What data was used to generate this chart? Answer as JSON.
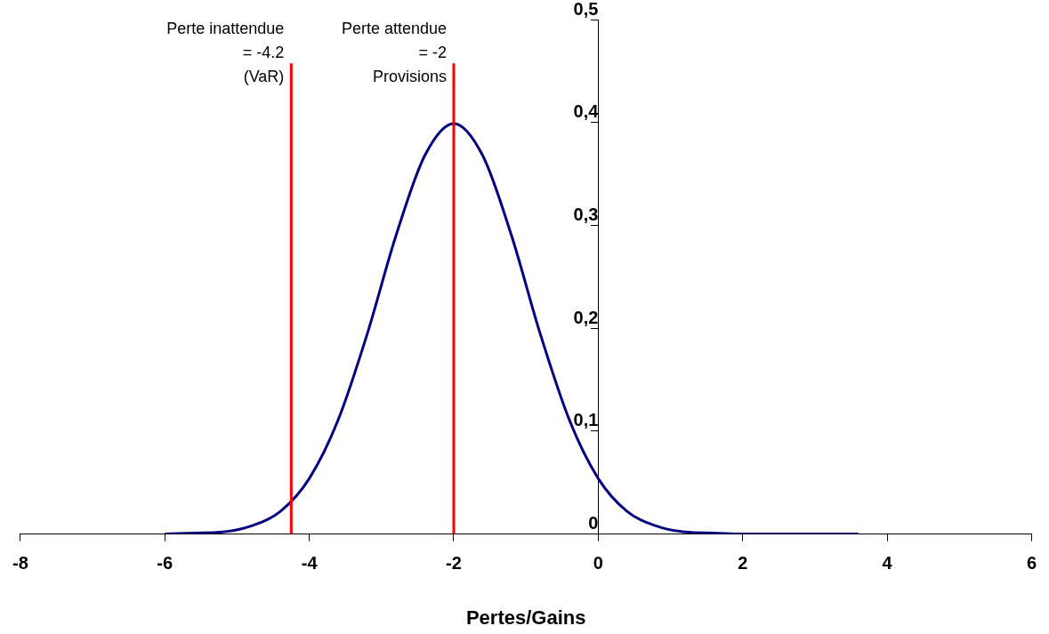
{
  "chart_data": {
    "type": "line",
    "xlabel": "Pertes/Gains",
    "xlim": [
      -8,
      6
    ],
    "xticks": [
      -8,
      -6,
      -4,
      -2,
      0,
      2,
      4,
      6
    ],
    "ylim": [
      0,
      0.5
    ],
    "yticks": [
      {
        "value": 0,
        "label": "0"
      },
      {
        "value": 0.1,
        "label": "0,1"
      },
      {
        "value": 0.2,
        "label": "0,2"
      },
      {
        "value": 0.3,
        "label": "0,3"
      },
      {
        "value": 0.4,
        "label": "0,4"
      },
      {
        "value": 0.5,
        "label": "0,5"
      }
    ],
    "grid": false,
    "legend": false,
    "marker": "none",
    "line_style": "solid",
    "series": [
      {
        "color": "#000080",
        "x": [
          -6,
          -5.6,
          -5.2,
          -4.8,
          -4.4,
          -4.0,
          -3.6,
          -3.2,
          -2.8,
          -2.4,
          -2.0,
          -1.6,
          -1.2,
          -0.8,
          -0.4,
          0,
          0.4,
          0.8,
          1.2,
          1.6,
          2,
          2.4,
          2.8,
          3.2,
          3.6
        ],
        "values": [
          0,
          0.001,
          0.002,
          0.008,
          0.022,
          0.054,
          0.111,
          0.194,
          0.29,
          0.368,
          0.399,
          0.368,
          0.29,
          0.194,
          0.111,
          0.054,
          0.022,
          0.008,
          0.002,
          0.001,
          0,
          0,
          0,
          0,
          0
        ]
      }
    ],
    "ref_lines": [
      {
        "axis": "x",
        "value": -4.25,
        "label": "Perte inattendue\n= -4.2\n(VaR)",
        "color": "#ff0000"
      },
      {
        "axis": "x",
        "value": -2,
        "label": "Perte attendue\n= -2\nProvisions",
        "color": "#ff0000"
      }
    ]
  }
}
